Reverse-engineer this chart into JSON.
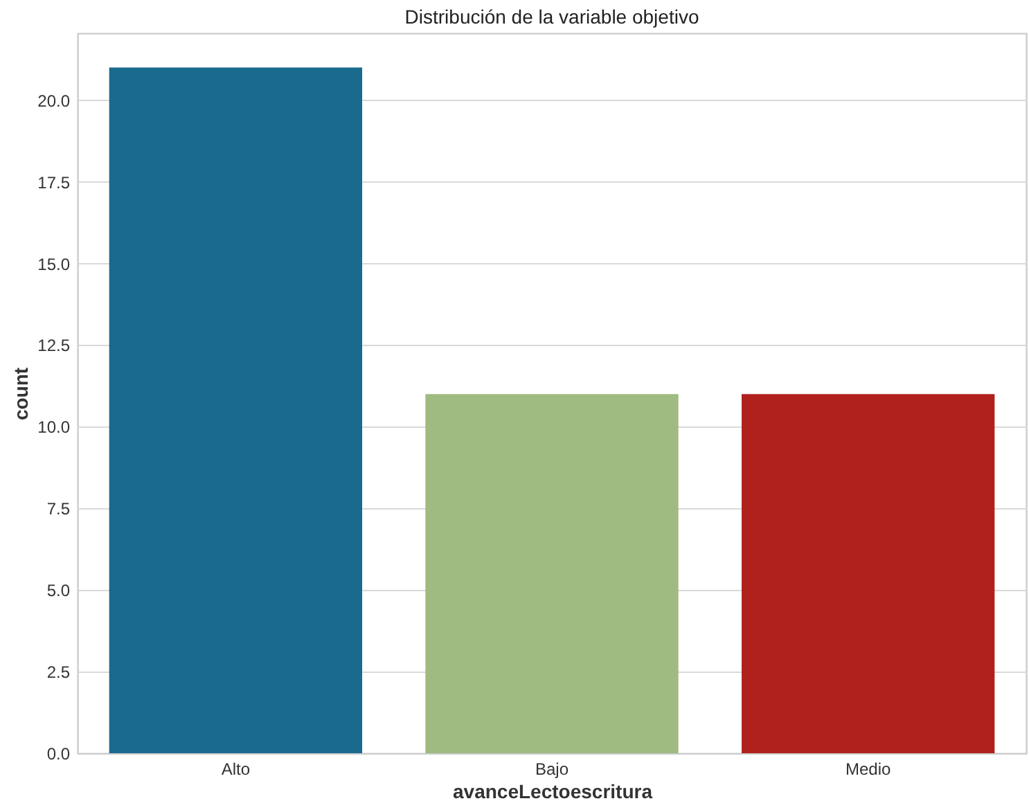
{
  "chart_data": {
    "type": "bar",
    "title": "Distribución de la variable objetivo",
    "xlabel": "avanceLectoescritura",
    "ylabel": "count",
    "categories": [
      "Alto",
      "Bajo",
      "Medio"
    ],
    "values": [
      21,
      11,
      11
    ],
    "colors": [
      "#1a6a8e",
      "#9fbb81",
      "#b0211d"
    ],
    "ylim": [
      0,
      22.05
    ],
    "yticks": [
      {
        "value": 0,
        "label": "0.0"
      },
      {
        "value": 2.5,
        "label": "2.5"
      },
      {
        "value": 5,
        "label": "5.0"
      },
      {
        "value": 7.5,
        "label": "7.5"
      },
      {
        "value": 10,
        "label": "10.0"
      },
      {
        "value": 12.5,
        "label": "12.5"
      },
      {
        "value": 15,
        "label": "15.0"
      },
      {
        "value": 17.5,
        "label": "17.5"
      },
      {
        "value": 20,
        "label": "20.0"
      }
    ],
    "grid": "y"
  }
}
